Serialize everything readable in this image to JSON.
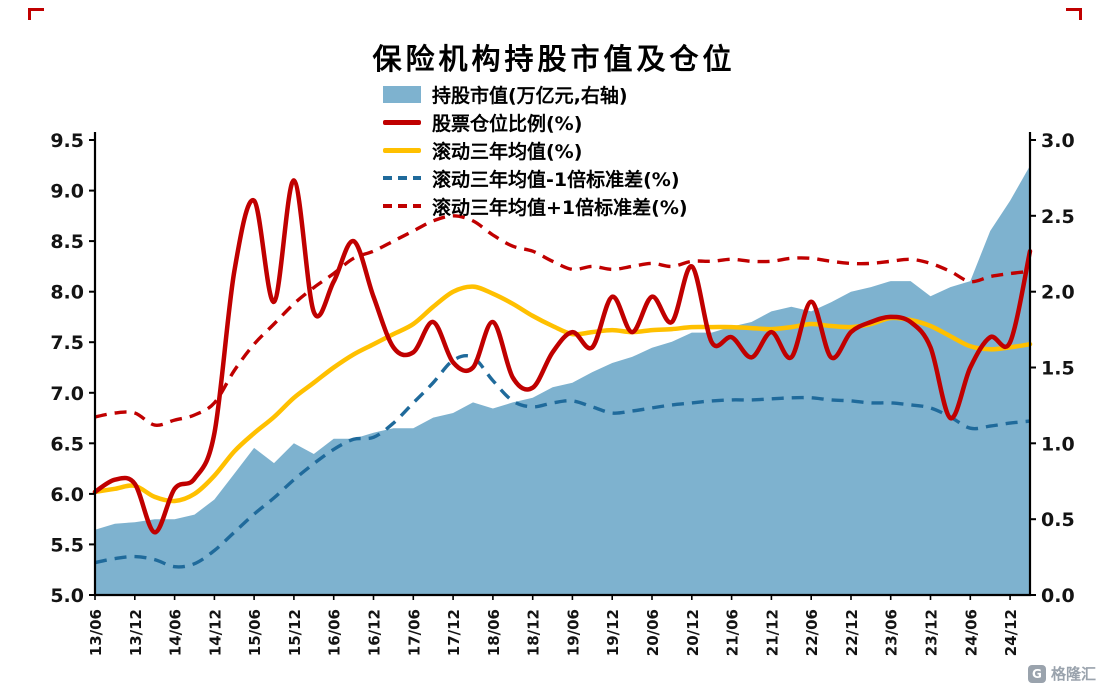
{
  "title": "保险机构持股市值及仓位",
  "watermark": {
    "text": "格隆汇",
    "logo_glyph": "G"
  },
  "decoration": {
    "corner_mark_color": "#c00000"
  },
  "chart_data": {
    "type": "area+line",
    "title": "保险机构持股市值及仓位",
    "grid": false,
    "legend_position": "top-center",
    "left_axis": {
      "min": 5.0,
      "max": 9.5,
      "tick_labels": [
        "9.5",
        "9.0",
        "8.5",
        "8.0",
        "7.5",
        "7.0",
        "6.5",
        "6.0",
        "5.5",
        "5.0"
      ]
    },
    "right_axis": {
      "min": 0.0,
      "max": 3.0,
      "tick_labels": [
        "3.0",
        "2.5",
        "2.0",
        "1.5",
        "1.0",
        "0.5",
        "0.0"
      ]
    },
    "x_tick_labels": [
      "13/06",
      "13/12",
      "14/06",
      "14/12",
      "15/06",
      "15/12",
      "16/06",
      "16/12",
      "17/06",
      "17/12",
      "18/06",
      "18/12",
      "19/06",
      "19/12",
      "20/06",
      "20/12",
      "21/06",
      "21/12",
      "22/06",
      "22/12",
      "23/06",
      "23/12",
      "24/06",
      "24/12"
    ],
    "x": [
      "13/06",
      "13/09",
      "13/12",
      "14/03",
      "14/06",
      "14/09",
      "14/12",
      "15/03",
      "15/06",
      "15/09",
      "15/12",
      "16/03",
      "16/06",
      "16/09",
      "16/12",
      "17/03",
      "17/06",
      "17/09",
      "17/12",
      "18/03",
      "18/06",
      "18/09",
      "18/12",
      "19/03",
      "19/06",
      "19/09",
      "19/12",
      "20/03",
      "20/06",
      "20/09",
      "20/12",
      "21/03",
      "21/06",
      "21/09",
      "21/12",
      "22/03",
      "22/06",
      "22/09",
      "22/12",
      "23/03",
      "23/06",
      "23/09",
      "23/12",
      "24/03",
      "24/06",
      "24/09",
      "24/12",
      "25/03"
    ],
    "series": [
      {
        "name": "持股市值(万亿元,右轴)",
        "type": "area",
        "axis": "right",
        "color": "#7EB2CF",
        "dash": false,
        "values": [
          0.43,
          0.47,
          0.48,
          0.5,
          0.5,
          0.53,
          0.63,
          0.8,
          0.97,
          0.87,
          1.0,
          0.93,
          1.03,
          1.03,
          1.07,
          1.1,
          1.1,
          1.17,
          1.2,
          1.27,
          1.23,
          1.27,
          1.3,
          1.37,
          1.4,
          1.47,
          1.53,
          1.57,
          1.63,
          1.67,
          1.73,
          1.73,
          1.77,
          1.8,
          1.87,
          1.9,
          1.87,
          1.93,
          2.0,
          2.03,
          2.07,
          2.07,
          1.97,
          2.03,
          2.07,
          2.4,
          2.6,
          2.83
        ]
      },
      {
        "name": "股票仓位比例(%)",
        "type": "line",
        "axis": "left",
        "color": "#C00000",
        "dash": false,
        "values": [
          6.02,
          6.14,
          6.1,
          5.62,
          6.05,
          6.15,
          6.6,
          8.2,
          8.9,
          7.9,
          9.1,
          7.8,
          8.1,
          8.5,
          7.95,
          7.45,
          7.4,
          7.7,
          7.3,
          7.25,
          7.7,
          7.15,
          7.05,
          7.4,
          7.6,
          7.45,
          7.95,
          7.6,
          7.95,
          7.7,
          8.25,
          7.5,
          7.55,
          7.35,
          7.6,
          7.35,
          7.9,
          7.35,
          7.6,
          7.7,
          7.75,
          7.7,
          7.45,
          6.75,
          7.25,
          7.55,
          7.5,
          8.4
        ]
      },
      {
        "name": "滚动三年均值(%)",
        "type": "line",
        "axis": "left",
        "color": "#FFC000",
        "dash": false,
        "values": [
          6.02,
          6.05,
          6.08,
          5.97,
          5.93,
          6.0,
          6.18,
          6.42,
          6.6,
          6.76,
          6.95,
          7.1,
          7.25,
          7.38,
          7.48,
          7.58,
          7.68,
          7.85,
          8.0,
          8.05,
          7.98,
          7.88,
          7.76,
          7.66,
          7.58,
          7.6,
          7.62,
          7.6,
          7.62,
          7.63,
          7.65,
          7.65,
          7.65,
          7.64,
          7.63,
          7.65,
          7.68,
          7.66,
          7.65,
          7.68,
          7.74,
          7.72,
          7.66,
          7.56,
          7.46,
          7.43,
          7.45,
          7.48
        ]
      },
      {
        "name": "滚动三年均值-1倍标准差(%)",
        "type": "line",
        "axis": "left",
        "color": "#1F6A9B",
        "dash": true,
        "values": [
          5.32,
          5.36,
          5.38,
          5.35,
          5.28,
          5.31,
          5.44,
          5.62,
          5.8,
          5.96,
          6.14,
          6.3,
          6.44,
          6.54,
          6.56,
          6.7,
          6.9,
          7.1,
          7.32,
          7.35,
          7.12,
          6.92,
          6.86,
          6.9,
          6.92,
          6.86,
          6.8,
          6.82,
          6.85,
          6.88,
          6.9,
          6.92,
          6.93,
          6.93,
          6.94,
          6.95,
          6.95,
          6.93,
          6.92,
          6.9,
          6.9,
          6.88,
          6.85,
          6.76,
          6.65,
          6.67,
          6.7,
          6.72
        ]
      },
      {
        "name": "滚动三年均值+1倍标准差(%)",
        "type": "line",
        "axis": "left",
        "color": "#C00000",
        "dash": true,
        "values": [
          6.76,
          6.8,
          6.8,
          6.68,
          6.73,
          6.78,
          6.9,
          7.22,
          7.48,
          7.68,
          7.88,
          8.04,
          8.18,
          8.33,
          8.4,
          8.5,
          8.6,
          8.7,
          8.75,
          8.7,
          8.56,
          8.45,
          8.4,
          8.3,
          8.22,
          8.25,
          8.22,
          8.25,
          8.28,
          8.25,
          8.3,
          8.3,
          8.32,
          8.3,
          8.3,
          8.33,
          8.33,
          8.3,
          8.28,
          8.28,
          8.3,
          8.32,
          8.28,
          8.2,
          8.1,
          8.15,
          8.18,
          8.2
        ]
      }
    ]
  }
}
